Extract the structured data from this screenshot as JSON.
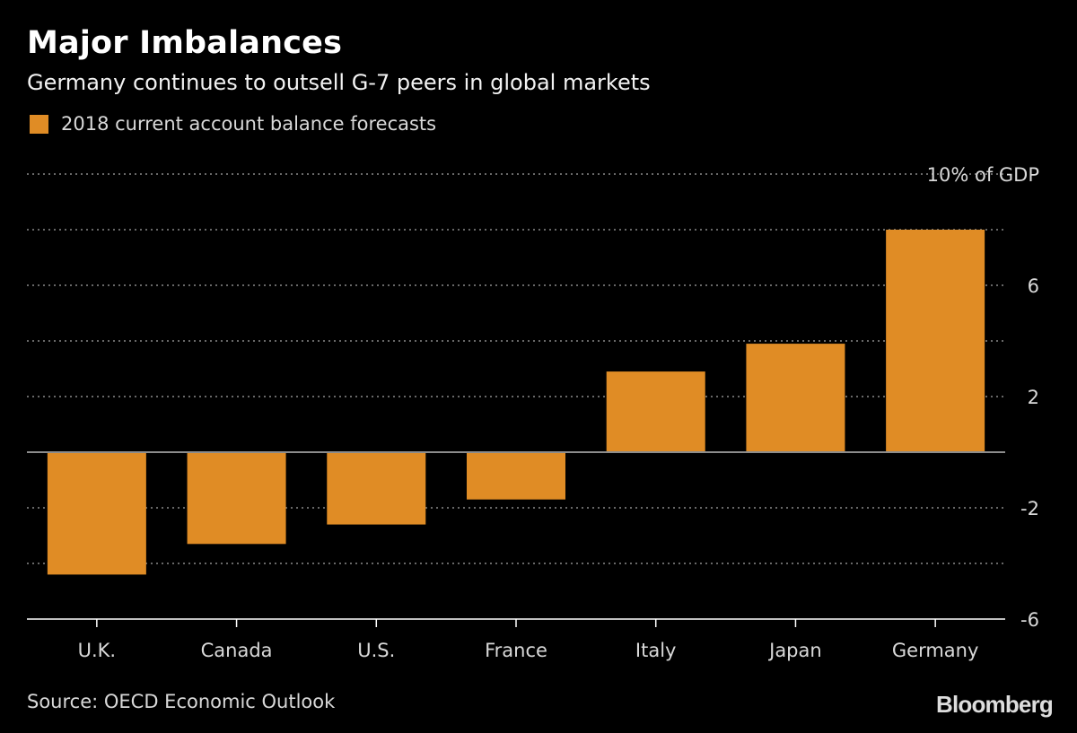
{
  "title": "Major Imbalances",
  "subtitle": "Germany continues to outsell G-7 peers in global markets",
  "legend_label": "2018 current account balance forecasts",
  "source": "Source: OECD Economic Outlook",
  "brand": "Bloomberg",
  "colors": {
    "background": "#000000",
    "bar": "#e08c25",
    "grid": "#8a8a8a",
    "zero_line": "#8c8c8c",
    "axis_text": "#d9d9d9",
    "text": "#ffffff"
  },
  "chart_data": {
    "type": "bar",
    "title": "Major Imbalances",
    "subtitle": "Germany continues to outsell G-7 peers in global markets",
    "categories": [
      "U.K.",
      "Canada",
      "U.S.",
      "France",
      "Italy",
      "Japan",
      "Germany"
    ],
    "series": [
      {
        "name": "2018 current account balance forecasts",
        "values": [
          -4.4,
          -3.3,
          -2.6,
          -1.7,
          2.9,
          3.9,
          8.0
        ]
      }
    ],
    "ylim": [
      -6,
      10
    ],
    "gridlines": [
      10,
      8,
      6,
      4,
      2,
      -2,
      -4
    ],
    "yticks": [
      {
        "value": 10,
        "label": "10% of GDP"
      },
      {
        "value": 6,
        "label": "6"
      },
      {
        "value": 2,
        "label": "2"
      },
      {
        "value": -2,
        "label": "-2"
      },
      {
        "value": -6,
        "label": "-6"
      }
    ],
    "xlabel": "",
    "ylabel": "% of GDP",
    "grid": true,
    "legend_position": "top-left"
  }
}
